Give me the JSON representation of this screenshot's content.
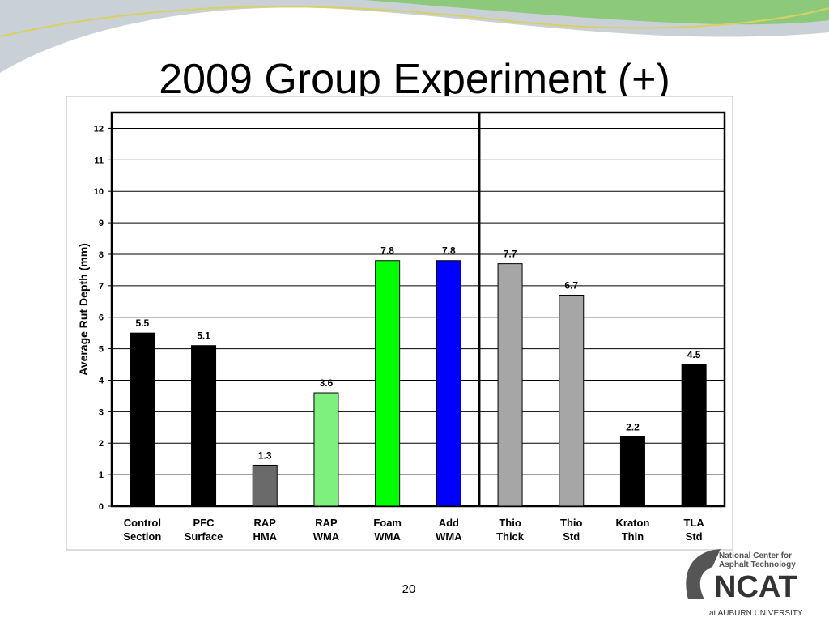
{
  "title": "2009 Group Experiment (+)",
  "slide_number": "20",
  "logo": {
    "line1": "National Center for",
    "line2": "Asphalt Technology",
    "name": "NCAT",
    "affiliation": "at AUBURN UNIVERSITY"
  },
  "chart_data": {
    "type": "bar",
    "y_label": "Average Rut Depth (mm)",
    "categories": [
      [
        "Control",
        "Section"
      ],
      [
        "PFC",
        "Surface"
      ],
      [
        "RAP",
        "HMA"
      ],
      [
        "RAP",
        "WMA"
      ],
      [
        "Foam",
        "WMA"
      ],
      [
        "Add",
        "WMA"
      ],
      [
        "Thio",
        "Thick"
      ],
      [
        "Thio",
        "Std"
      ],
      [
        "Kraton",
        "Thin"
      ],
      [
        "TLA",
        "Std"
      ]
    ],
    "values": [
      5.5,
      5.1,
      1.3,
      3.6,
      7.8,
      7.8,
      7.7,
      6.7,
      2.2,
      4.5
    ],
    "colors": [
      "#000000",
      "#000000",
      "#6a6a6a",
      "#7ef07e",
      "#00ff00",
      "#0000ff",
      "#a6a6a6",
      "#a6a6a6",
      "#000000",
      "#000000"
    ],
    "ylim": [
      0,
      12.5
    ],
    "yticks": [
      0,
      1,
      2,
      3,
      4,
      5,
      6,
      7,
      8,
      9,
      10,
      11,
      12
    ],
    "grid": true
  }
}
